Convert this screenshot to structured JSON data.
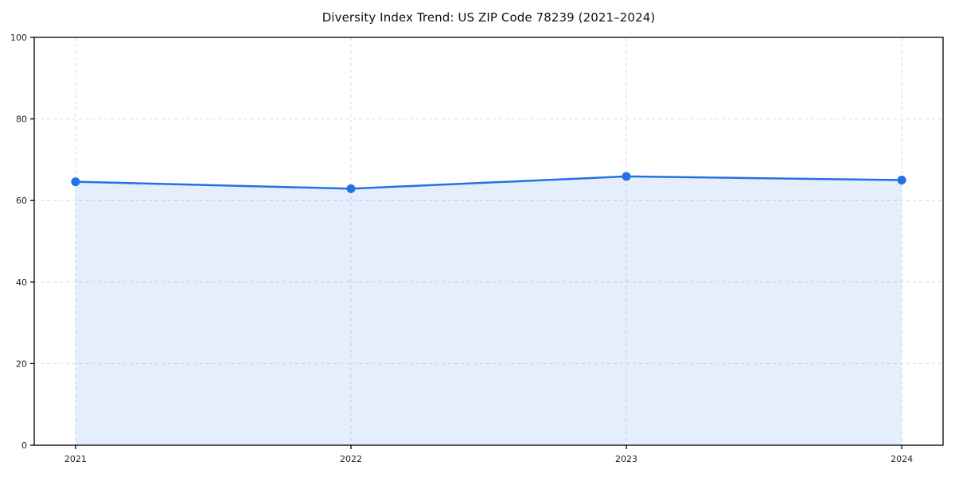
{
  "title": "Diversity Index Trend: US ZIP Code 78239 (2021–2024)",
  "chart_data": {
    "type": "area",
    "title": "Diversity Index Trend: US ZIP Code 78239 (2021–2024)",
    "categories": [
      "2021",
      "2022",
      "2023",
      "2024"
    ],
    "series": [
      {
        "name": "Diversity Index",
        "values": [
          64.6,
          62.9,
          65.9,
          65.0
        ]
      }
    ],
    "xlabel": "",
    "ylabel": "",
    "ylim": [
      0,
      100
    ],
    "yticks": [
      0,
      20,
      40,
      60,
      80,
      100
    ],
    "grid": true,
    "grid_style": "dashed",
    "legend": false,
    "x_margin_frac": 0.05,
    "colors": {
      "line": "#2172e5",
      "marker": "#2172e5",
      "fill": "#2172e5",
      "fill_opacity": 0.12,
      "gridline": "#d9d9d9",
      "spine": "#000000",
      "tick_text": "#222222",
      "background": "#ffffff"
    }
  }
}
